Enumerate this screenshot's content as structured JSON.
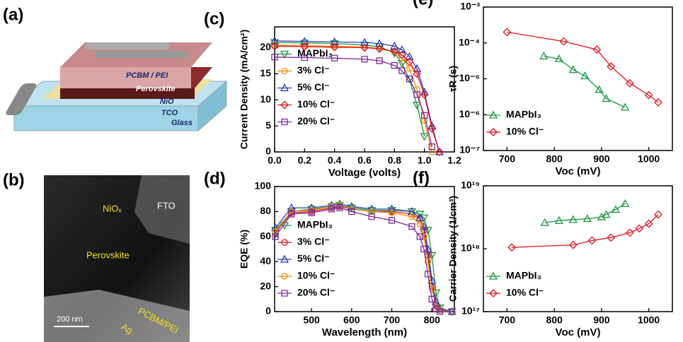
{
  "images": [
    {
      "label": "(a)",
      "texts": [
        "PCBM / PEI",
        "Perovskite",
        "NiO",
        "TCO",
        "Glass"
      ]
    },
    {
      "label": "(b)",
      "texts": [
        "NiOₓ",
        "FTO",
        "Perovskite",
        "PCBM/PEI",
        "Ag",
        "200 nm"
      ]
    }
  ],
  "chart_data": [
    {
      "type": "line",
      "panel_label": "(c)",
      "xlabel": "Voltage (volts)",
      "ylabel": "Current Density (mA/cm²)",
      "x": [
        0,
        0.2,
        0.4,
        0.6,
        0.7,
        0.8,
        0.85,
        0.9,
        0.95,
        1.0,
        1.05,
        1.1
      ],
      "xlim": [
        0,
        1.2
      ],
      "xticks": [
        {
          "value": 0,
          "label": "0.0"
        },
        0.2,
        0.4,
        0.6,
        0.8,
        {
          "value": 1,
          "label": "1.0"
        },
        1.2
      ],
      "ylim": [
        0,
        24
      ],
      "yticks": [
        0,
        5,
        10,
        15,
        20
      ],
      "legend_loc": "center left",
      "series": [
        {
          "name": "MAPbI₃",
          "color": "#1a9641",
          "marker": "triangle-down",
          "values": [
            21,
            20.9,
            20.8,
            20.5,
            20.2,
            19,
            17,
            14,
            9,
            3,
            null,
            null
          ]
        },
        {
          "name": "3% Cl⁻",
          "color": "#f28c00",
          "marker": "circle",
          "values": [
            20.5,
            20.4,
            20.3,
            20.1,
            19.9,
            19.2,
            18,
            16,
            12,
            6,
            0,
            null
          ]
        },
        {
          "name": "5% Cl⁻",
          "color": "#2b3fb5",
          "marker": "triangle-up",
          "values": [
            21.3,
            21.2,
            21.1,
            21,
            20.8,
            20.3,
            19.6,
            18.3,
            16,
            11.5,
            5,
            0
          ]
        },
        {
          "name": "10% Cl⁻",
          "color": "#e3111b",
          "marker": "diamond",
          "values": [
            20.3,
            20.2,
            20.1,
            20,
            19.8,
            19.3,
            18.6,
            17.3,
            15,
            11,
            4.5,
            0
          ]
        },
        {
          "name": "20% Cl⁻",
          "color": "#7b2a9e",
          "marker": "square",
          "values": [
            18.2,
            18.1,
            18,
            17.8,
            17.5,
            16.6,
            15.6,
            14,
            11,
            7,
            1,
            null
          ]
        }
      ]
    },
    {
      "type": "line",
      "panel_label": "(d)",
      "xlabel": "Wavelength (nm)",
      "ylabel": "EQE (%)",
      "x": [
        410,
        450,
        500,
        550,
        570,
        600,
        650,
        700,
        750,
        770,
        780,
        790,
        800,
        810,
        820,
        850
      ],
      "xlim": [
        408,
        856
      ],
      "xticks": [
        500,
        600,
        700,
        800
      ],
      "ylim": [
        0,
        100
      ],
      "yticks": [
        0,
        20,
        40,
        60,
        80,
        100
      ],
      "legend_loc": "lower left",
      "series": [
        {
          "name": "MAPbI₃",
          "color": "#1a9641",
          "marker": "triangle-down",
          "values": [
            65,
            80,
            82,
            84,
            85,
            83,
            81,
            81,
            80,
            78,
            75,
            65,
            45,
            15,
            3,
            0
          ]
        },
        {
          "name": "3% Cl⁻",
          "color": "#e3111b",
          "marker": "circle",
          "values": [
            63,
            79,
            80,
            83,
            84,
            82,
            80,
            80,
            78,
            74,
            65,
            45,
            20,
            5,
            1,
            0
          ]
        },
        {
          "name": "5% Cl⁻",
          "color": "#2b3fb5",
          "marker": "triangle-up",
          "values": [
            67,
            83,
            83,
            85,
            86,
            84,
            82,
            82,
            80,
            75,
            68,
            50,
            25,
            8,
            2,
            0
          ]
        },
        {
          "name": "10% Cl⁻",
          "color": "#f28c00",
          "marker": "circle",
          "values": [
            64,
            80,
            81,
            84,
            85,
            82,
            80,
            79,
            76,
            70,
            60,
            40,
            18,
            4,
            1,
            0
          ]
        },
        {
          "name": "20% Cl⁻",
          "color": "#7b2a9e",
          "marker": "square",
          "values": [
            60,
            78,
            79,
            82,
            83,
            80,
            76,
            73,
            68,
            60,
            50,
            30,
            10,
            2,
            0,
            0
          ]
        }
      ]
    },
    {
      "type": "line",
      "panel_label": "(e)",
      "xlabel": "Voc (mV)",
      "ylabel": "τR (s)",
      "log_y": true,
      "xlim": [
        650,
        1050
      ],
      "xticks": [
        700,
        800,
        900,
        1000
      ],
      "ylim": [
        1e-07,
        0.001
      ],
      "yticks": [
        {
          "value": 1e-07,
          "label": "10⁻⁷"
        },
        {
          "value": 1e-06,
          "label": "10⁻⁶"
        },
        {
          "value": 1e-05,
          "label": "10⁻⁵"
        },
        {
          "value": 0.0001,
          "label": "10⁻⁴"
        },
        {
          "value": 0.001,
          "label": "10⁻³"
        }
      ],
      "legend_loc": "lower left",
      "series": [
        {
          "name": "MAPbI₃",
          "color": "#1a9641",
          "marker": "triangle-up",
          "x": [
            778,
            810,
            840,
            865,
            895,
            910,
            950
          ],
          "values": [
            4.3e-05,
            3.6e-05,
            1.8e-05,
            1.2e-05,
            5e-06,
            2.8e-06,
            1.6e-06
          ]
        },
        {
          "name": "10% Cl⁻",
          "color": "#e3111b",
          "marker": "diamond",
          "x": [
            700,
            820,
            890,
            920,
            960,
            1000,
            1020
          ],
          "values": [
            0.0002,
            0.00011,
            6.5e-05,
            2.2e-05,
            7.5e-06,
            3.5e-06,
            2.2e-06
          ]
        }
      ]
    },
    {
      "type": "line",
      "panel_label": "(f)",
      "xlabel": "Voc (mV)",
      "ylabel": "Carrier Density (1/cm³)",
      "log_y": true,
      "xlim": [
        650,
        1050
      ],
      "xticks": [
        700,
        800,
        900,
        1000
      ],
      "ylim": [
        1e+17,
        1e+19
      ],
      "yticks": [
        {
          "value": 1e+17,
          "label": "10¹⁷"
        },
        {
          "value": 1e+18,
          "label": "10¹⁸"
        },
        {
          "value": 1e+19,
          "label": "10¹⁹"
        }
      ],
      "legend_loc": "lower left",
      "series": [
        {
          "name": "MAPbI₃",
          "color": "#1a9641",
          "marker": "triangle-up",
          "x": [
            780,
            810,
            840,
            870,
            900,
            910,
            930,
            950
          ],
          "values": [
            2.6e+18,
            2.8e+18,
            2.9e+18,
            3e+18,
            3.2e+18,
            3.5e+18,
            4.2e+18,
            5.2e+18
          ]
        },
        {
          "name": "10% Cl⁻",
          "color": "#e3111b",
          "marker": "diamond",
          "x": [
            710,
            840,
            880,
            920,
            960,
            980,
            1000,
            1020
          ],
          "values": [
            1.05e+18,
            1.15e+18,
            1.35e+18,
            1.5e+18,
            1.8e+18,
            2.1e+18,
            2.5e+18,
            3.5e+18
          ]
        }
      ]
    }
  ]
}
